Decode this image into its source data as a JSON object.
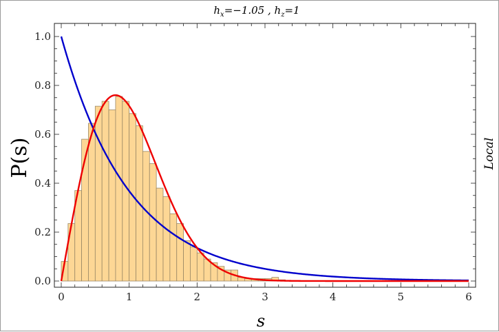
{
  "chart_data": {
    "type": "bar",
    "title": "hₓ=−1.05 , hₔ=1",
    "title_parts": {
      "hx_base": "h",
      "hx_sub": "x",
      "hx_value": "=−1.05 , ",
      "hz_base": "h",
      "hz_sub": "z",
      "hz_value": "=1"
    },
    "xlabel": "s",
    "ylabel": "P(s)",
    "side_label": "Local",
    "xlim": [
      0,
      6
    ],
    "ylim": [
      0,
      1.0
    ],
    "x_ticks": [
      0,
      1,
      2,
      3,
      4,
      5,
      6
    ],
    "x_tick_labels": [
      "0",
      "1",
      "2",
      "3",
      "4",
      "5",
      "6"
    ],
    "y_ticks": [
      0.0,
      0.2,
      0.4,
      0.6,
      0.8,
      1.0
    ],
    "y_tick_labels": [
      "0.0",
      "0.2",
      "0.4",
      "0.6",
      "0.8",
      "1.0"
    ],
    "grid": false,
    "histogram": {
      "bin_width": 0.1,
      "bin_starts": [
        0.0,
        0.1,
        0.2,
        0.3,
        0.4,
        0.5,
        0.6,
        0.7,
        0.8,
        0.9,
        1.0,
        1.1,
        1.2,
        1.3,
        1.4,
        1.5,
        1.6,
        1.7,
        1.8,
        1.9,
        2.0,
        2.1,
        2.2,
        2.3,
        2.4,
        2.5,
        2.6,
        2.7,
        2.8,
        2.9,
        3.0,
        3.1,
        3.2
      ],
      "values": [
        0.08,
        0.235,
        0.37,
        0.58,
        0.645,
        0.715,
        0.735,
        0.7,
        0.755,
        0.735,
        0.685,
        0.635,
        0.53,
        0.48,
        0.38,
        0.345,
        0.275,
        0.235,
        0.165,
        0.14,
        0.115,
        0.09,
        0.075,
        0.06,
        0.045,
        0.045,
        0.015,
        0.01,
        0.01,
        0.01,
        0.01,
        0.015,
        0.005
      ],
      "fill": "#fdd795",
      "stroke": "#9a8866"
    },
    "series": [
      {
        "kind": "line",
        "formula": "exp(-s)",
        "color": "#0000cc"
      },
      {
        "kind": "line",
        "formula": "wigner_surmise",
        "color": "#ee0000"
      }
    ],
    "axis_color": "#222222"
  }
}
